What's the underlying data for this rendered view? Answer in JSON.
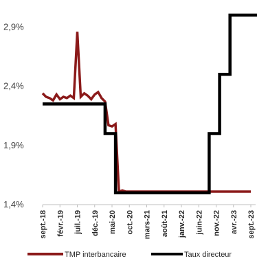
{
  "chart_data": {
    "type": "line",
    "title": "",
    "xlabel": "",
    "ylabel": "",
    "ylim": [
      1.4,
      3.0
    ],
    "y_ticks": [
      "1,4%",
      "1,9%",
      "2,4%",
      "2,9%"
    ],
    "y_tick_values": [
      1.4,
      1.9,
      2.4,
      2.9
    ],
    "x_ticks": [
      "sept.-18",
      "févr.-19",
      "juil.-19",
      "déc.-19",
      "mai-20",
      "oct.-20",
      "mars-21",
      "août-21",
      "janv.-22",
      "juin-22",
      "nov.-22",
      "avr.-23",
      "sept.-23"
    ],
    "x_tick_months": [
      "2018-09",
      "2019-02",
      "2019-07",
      "2019-12",
      "2020-05",
      "2020-10",
      "2021-03",
      "2021-08",
      "2022-01",
      "2022-06",
      "2022-11",
      "2023-04",
      "2023-09"
    ],
    "legend_position": "bottom",
    "grid": false,
    "series": [
      {
        "name": "TMP interbancaire",
        "color": "#8B1A1A",
        "x": [
          "2018-09",
          "2018-10",
          "2018-11",
          "2018-12",
          "2019-01",
          "2019-02",
          "2019-03",
          "2019-04",
          "2019-05",
          "2019-06",
          "2019-07",
          "2019-08",
          "2019-09",
          "2019-10",
          "2019-11",
          "2019-12",
          "2020-01",
          "2020-02",
          "2020-03",
          "2020-04",
          "2020-05",
          "2020-06",
          "2020-07",
          "2020-08",
          "2020-09",
          "2020-10",
          "2020-11",
          "2020-12",
          "2021-01",
          "2021-02",
          "2021-03",
          "2021-04",
          "2021-05",
          "2021-06",
          "2021-07",
          "2021-08",
          "2021-09",
          "2021-10",
          "2021-11",
          "2021-12",
          "2022-01",
          "2022-02",
          "2022-03",
          "2022-04",
          "2022-05",
          "2022-06",
          "2022-07",
          "2022-08",
          "2022-09",
          "2022-10",
          "2022-11",
          "2022-12",
          "2023-01",
          "2023-02",
          "2023-03",
          "2023-04",
          "2023-05",
          "2023-06",
          "2023-07",
          "2023-08",
          "2023-09"
        ],
        "values": [
          2.34,
          2.31,
          2.3,
          2.28,
          2.33,
          2.29,
          2.31,
          2.3,
          2.32,
          2.3,
          2.86,
          2.31,
          2.34,
          2.32,
          2.29,
          2.33,
          2.35,
          2.3,
          2.27,
          2.07,
          2.06,
          2.08,
          1.51,
          1.52,
          1.51,
          1.51,
          1.51,
          1.51,
          1.51,
          1.51,
          1.51,
          1.51,
          1.51,
          1.51,
          1.51,
          1.51,
          1.51,
          1.51,
          1.51,
          1.51,
          1.51,
          1.51,
          1.51,
          1.51,
          1.51,
          1.51,
          1.51,
          1.51,
          1.51,
          1.51,
          1.51,
          1.51,
          1.51,
          1.51,
          1.51,
          1.51,
          1.51,
          1.51,
          1.51,
          1.51,
          1.51
        ]
      },
      {
        "name": "Taux directeur",
        "color": "#000000",
        "x": [
          "2018-09",
          "2020-03",
          "2020-03",
          "2020-06",
          "2020-06",
          "2022-09",
          "2022-09",
          "2022-12",
          "2022-12",
          "2023-03",
          "2023-03",
          "2023-12"
        ],
        "values": [
          2.25,
          2.25,
          2.0,
          2.0,
          1.5,
          1.5,
          2.0,
          2.0,
          2.5,
          2.5,
          3.0,
          3.0
        ]
      }
    ]
  }
}
